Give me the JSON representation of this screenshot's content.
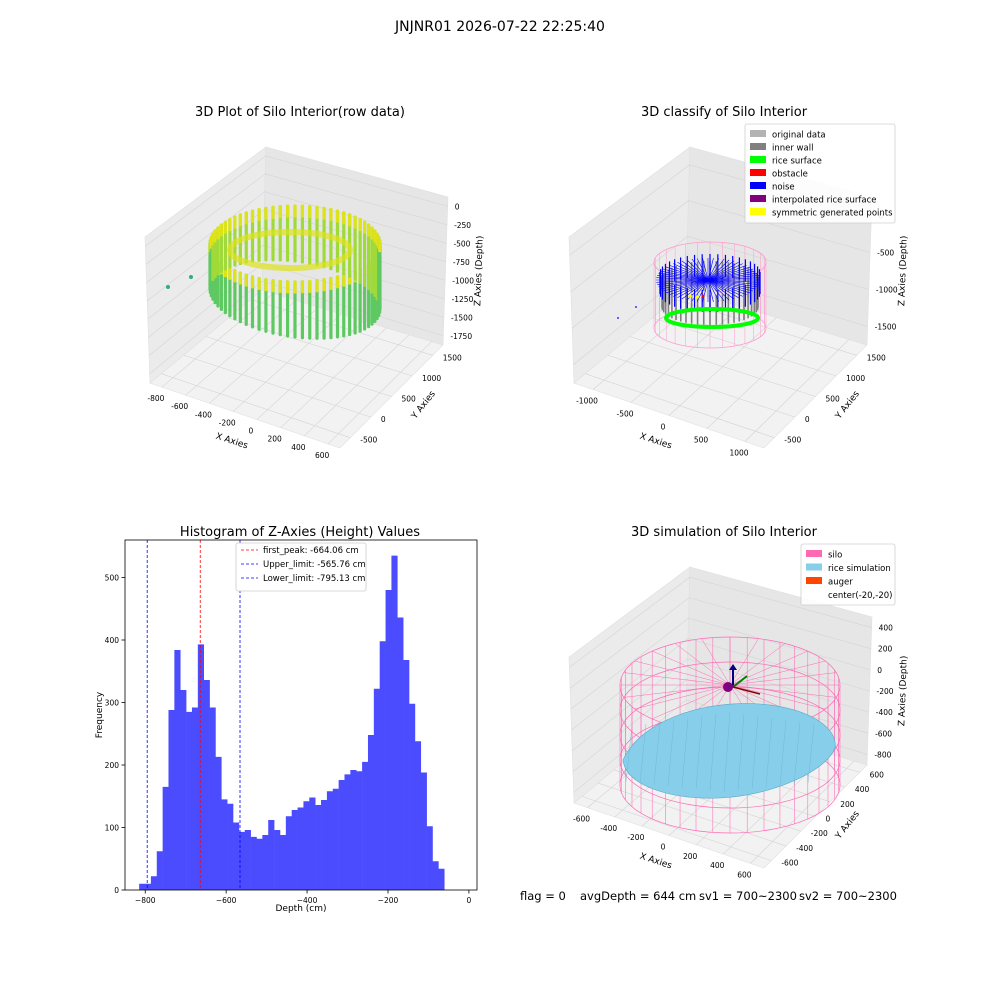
{
  "suptitle": "JNJNR01 2026-07-22 22:25:40",
  "status_line": {
    "flag": "flag = 0",
    "avg": "avgDepth = 644 cm",
    "sv1": "sv1 = 700~2300",
    "sv2": "sv2 = 700~2300"
  },
  "chart_data": [
    {
      "type": "scatter",
      "title": "3D Plot of Silo Interior(row data)",
      "xlabel": "X Axies",
      "ylabel": "Y Axies",
      "zlabel": "Z Axies (Depth)",
      "x_ticks": [
        "-800",
        "-600",
        "-400",
        "-200",
        "0",
        "200",
        "400",
        "600"
      ],
      "y_ticks": [
        "-500",
        "0",
        "500",
        "1000",
        "1500"
      ],
      "z_ticks": [
        "0",
        "-250",
        "-500",
        "-750",
        "-1000",
        "-1250",
        "-1500",
        "-1750"
      ],
      "colormap": [
        "#2bb07f",
        "#5ec962",
        "#a0da39",
        "#dde318"
      ]
    },
    {
      "type": "scatter",
      "title": "3D classify of Silo Interior",
      "xlabel": "X Axies",
      "ylabel": "Y Axies",
      "zlabel": "Z Axies (Depth)",
      "x_ticks": [
        "-1000",
        "-500",
        "0",
        "500",
        "1000"
      ],
      "y_ticks": [
        "-500",
        "0",
        "500",
        "1000",
        "1500"
      ],
      "z_ticks": [
        "0",
        "-500",
        "-1000",
        "-1500"
      ],
      "legend": [
        {
          "label": "original data",
          "color": "#b3b3b3"
        },
        {
          "label": "inner wall",
          "color": "#808080"
        },
        {
          "label": "rice surface",
          "color": "#00ff00"
        },
        {
          "label": "obstacle",
          "color": "#ff0000"
        },
        {
          "label": "noise",
          "color": "#0000ff"
        },
        {
          "label": "interpolated rice surface",
          "color": "#800080"
        },
        {
          "label": "symmetric generated points",
          "color": "#ffff00"
        }
      ],
      "legend_position": "top-right"
    },
    {
      "type": "bar",
      "title": "Histogram of Z-Axies (Height) Values",
      "xlabel": "Depth (cm)",
      "ylabel": "Frequency",
      "xlim": [
        -850,
        20
      ],
      "ylim": [
        0,
        560
      ],
      "x_ticks": [
        -800,
        -600,
        -400,
        -200,
        0
      ],
      "y_ticks": [
        0,
        100,
        200,
        300,
        400,
        500
      ],
      "bar_color": "#4c4cff",
      "bin_start": -815,
      "bin_width": 14.5,
      "values": [
        10,
        10,
        22,
        62,
        165,
        288,
        384,
        320,
        285,
        292,
        393,
        336,
        292,
        213,
        145,
        138,
        108,
        93,
        96,
        85,
        82,
        88,
        112,
        96,
        88,
        118,
        128,
        132,
        142,
        148,
        136,
        144,
        158,
        162,
        176,
        185,
        192,
        190,
        205,
        248,
        322,
        398,
        480,
        535,
        436,
        368,
        298,
        238,
        188,
        102,
        46,
        34
      ],
      "lines": [
        {
          "label": "first_peak: -664.06 cm",
          "x": -664.06,
          "color": "#ff0000"
        },
        {
          "label": "Upper_limit: -565.76 cm",
          "x": -565.76,
          "color": "#0000ff"
        },
        {
          "label": "Lower_limit: -795.13 cm",
          "x": -795.13,
          "color": "#0000ff"
        }
      ],
      "legend_position": "top-center"
    },
    {
      "type": "scatter",
      "title": "3D simulation of Silo Interior",
      "xlabel": "X Axies",
      "ylabel": "Y Axies",
      "zlabel": "Z Axies (Depth)",
      "x_ticks": [
        "-600",
        "-400",
        "-200",
        "0",
        "200",
        "400",
        "600"
      ],
      "y_ticks": [
        "-600",
        "-400",
        "-200",
        "0",
        "200",
        "400",
        "600"
      ],
      "z_ticks": [
        "400",
        "200",
        "0",
        "-200",
        "-400",
        "-600",
        "-800"
      ],
      "legend": [
        {
          "label": "silo",
          "color": "#ff69b4"
        },
        {
          "label": "rice simulation",
          "color": "#87ceeb"
        },
        {
          "label": "auger",
          "color": "#ff4500"
        },
        {
          "label": "center(-20,-20)",
          "color": ""
        }
      ],
      "legend_position": "top-right"
    }
  ]
}
